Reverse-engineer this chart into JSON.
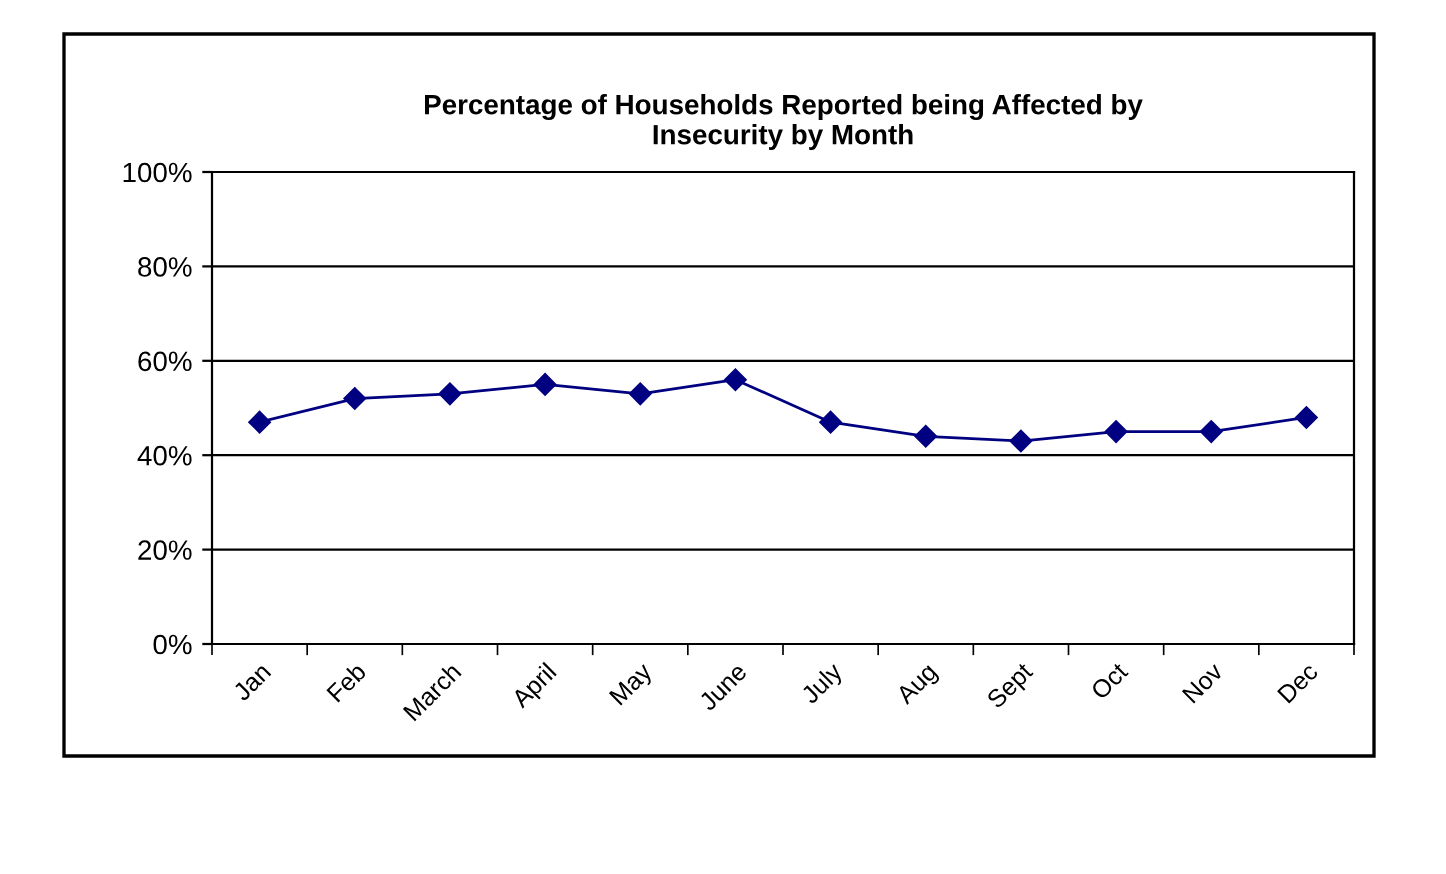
{
  "chart_data": {
    "type": "line",
    "title": "Percentage of Households Reported being Affected by\nInsecurity by Month",
    "categories": [
      "Jan",
      "Feb",
      "March",
      "April",
      "May",
      "June",
      "July",
      "Aug",
      "Sept",
      "Oct",
      "Nov",
      "Dec"
    ],
    "series": [
      {
        "color": "#000080",
        "values": [
          47,
          52,
          53,
          55,
          53,
          56,
          47,
          44,
          43,
          45,
          45,
          48
        ]
      }
    ],
    "ylim": [
      0,
      100
    ],
    "yticks": [
      {
        "value": 0,
        "label": "0%"
      },
      {
        "value": 20,
        "label": "20%"
      },
      {
        "value": 40,
        "label": "40%"
      },
      {
        "value": 60,
        "label": "60%"
      },
      {
        "value": 80,
        "label": "80%"
      },
      {
        "value": 100,
        "label": "100%"
      }
    ],
    "grid": "y",
    "marker": "diamond",
    "line_style": "solid"
  }
}
